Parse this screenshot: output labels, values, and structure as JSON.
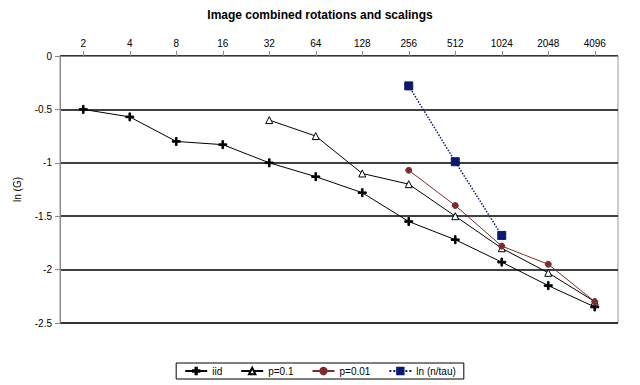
{
  "chart_data": {
    "type": "line",
    "title": "Image combined rotations and scalings",
    "y_label": "ln (G)",
    "categories": [
      "2",
      "4",
      "8",
      "16",
      "32",
      "64",
      "128",
      "256",
      "512",
      "1024",
      "2048",
      "4096"
    ],
    "series": [
      {
        "name": "iid",
        "color": "#000000",
        "marker": "plus",
        "line_style": "solid",
        "values": [
          -0.5,
          -0.57,
          -0.8,
          -0.83,
          -1.0,
          -1.13,
          -1.28,
          -1.55,
          -1.72,
          -1.93,
          -2.15,
          -2.35
        ]
      },
      {
        "name": "p=0.1",
        "color": "#000000",
        "marker": "triangle_open",
        "line_style": "solid",
        "values": [
          null,
          null,
          null,
          null,
          -0.6,
          -0.75,
          -1.1,
          -1.2,
          -1.5,
          -1.8,
          -2.03,
          -2.3
        ]
      },
      {
        "name": "p=0.01",
        "color": "#7a2e2e",
        "marker": "circle",
        "line_style": "solid",
        "values": [
          null,
          null,
          null,
          null,
          null,
          null,
          null,
          -1.07,
          -1.4,
          -1.78,
          -1.95,
          -2.3
        ]
      },
      {
        "name": "ln (n/tau)",
        "color": "#0a1a6e",
        "marker": "square",
        "line_style": "dotted",
        "values": [
          null,
          null,
          null,
          null,
          null,
          null,
          null,
          -0.28,
          -0.99,
          -1.68,
          null,
          null
        ]
      }
    ],
    "ylim": [
      -2.5,
      0
    ],
    "yticks": [
      -2.5,
      -2,
      -1.5,
      -1,
      -0.5,
      0
    ],
    "grid": true,
    "legend": "bottom"
  }
}
